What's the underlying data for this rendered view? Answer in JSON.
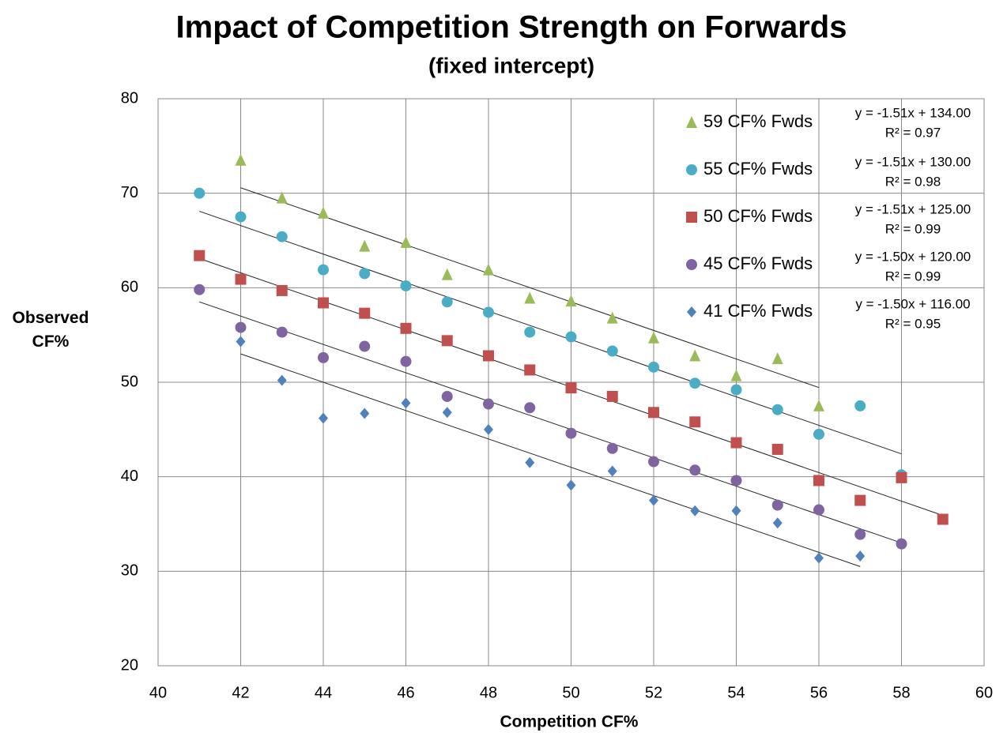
{
  "chart_data": {
    "type": "scatter",
    "title": "Impact of Competition Strength on Forwards",
    "subtitle": "(fixed intercept)",
    "x_label": "Competition CF%",
    "y_label": "Observed CF%",
    "xlim": [
      40,
      60
    ],
    "xticks": [
      40,
      42,
      44,
      46,
      48,
      50,
      52,
      54,
      56,
      58,
      60
    ],
    "ylim": [
      20,
      80
    ],
    "yticks": [
      20,
      30,
      40,
      50,
      60,
      70,
      80
    ],
    "grid": true,
    "series": [
      {
        "name": "59 CF% Fwds",
        "color": "#9bbb59",
        "marker": "triangle",
        "x": [
          42,
          43,
          44,
          45,
          46,
          47,
          48,
          49,
          50,
          51,
          52,
          53,
          54,
          55,
          56
        ],
        "values": [
          73.5,
          69.5,
          67.9,
          64.4,
          64.8,
          61.4,
          61.9,
          58.9,
          58.6,
          56.8,
          54.7,
          52.8,
          50.7,
          52.5,
          47.5
        ],
        "trendline": {
          "slope": -1.51,
          "intercept": 134.0,
          "label": "y = -1.51x + 134.00",
          "r2_label": "R² = 0.97"
        }
      },
      {
        "name": "55 CF% Fwds",
        "color": "#4bacc6",
        "marker": "circle",
        "x": [
          41,
          42,
          43,
          44,
          45,
          46,
          47,
          48,
          49,
          50,
          51,
          52,
          53,
          54,
          55,
          56,
          57,
          58
        ],
        "values": [
          70.0,
          67.5,
          65.4,
          61.9,
          61.5,
          60.2,
          58.5,
          57.4,
          55.3,
          54.8,
          53.3,
          51.6,
          49.9,
          49.2,
          47.1,
          44.5,
          47.5,
          40.2
        ],
        "trendline": {
          "slope": -1.51,
          "intercept": 130.0,
          "label": "y = -1.51x + 130.00",
          "r2_label": "R² = 0.98"
        }
      },
      {
        "name": "50 CF% Fwds",
        "color": "#c0504d",
        "marker": "square",
        "x": [
          41,
          42,
          43,
          44,
          45,
          46,
          47,
          48,
          49,
          50,
          51,
          52,
          53,
          54,
          55,
          56,
          57,
          58,
          59
        ],
        "values": [
          63.4,
          60.9,
          59.7,
          58.4,
          57.3,
          55.7,
          54.4,
          52.8,
          51.3,
          49.4,
          48.5,
          46.8,
          45.8,
          43.6,
          42.9,
          39.6,
          37.5,
          39.9,
          35.5
        ],
        "trendline": {
          "slope": -1.51,
          "intercept": 125.0,
          "label": "y = -1.51x + 125.00",
          "r2_label": "R² = 0.99"
        }
      },
      {
        "name": "45 CF% Fwds",
        "color": "#8064a2",
        "marker": "circle",
        "x": [
          41,
          42,
          43,
          44,
          45,
          46,
          47,
          48,
          49,
          50,
          51,
          52,
          53,
          54,
          55,
          56,
          57,
          58
        ],
        "values": [
          59.8,
          55.8,
          55.3,
          52.6,
          53.8,
          52.2,
          48.5,
          47.7,
          47.3,
          44.6,
          43.0,
          41.6,
          40.7,
          39.6,
          37.0,
          36.5,
          33.9,
          32.9
        ],
        "trendline": {
          "slope": -1.5,
          "intercept": 120.0,
          "label": "y = -1.50x + 120.00",
          "r2_label": "R² = 0.99"
        }
      },
      {
        "name": "41 CF% Fwds",
        "color": "#4f81bd",
        "marker": "diamond",
        "x": [
          42,
          43,
          44,
          45,
          46,
          47,
          48,
          49,
          50,
          51,
          52,
          53,
          54,
          55,
          56,
          57
        ],
        "values": [
          54.3,
          50.2,
          46.2,
          46.7,
          47.8,
          46.8,
          45.0,
          41.5,
          39.1,
          40.6,
          37.5,
          36.4,
          36.4,
          35.1,
          31.4,
          31.6
        ],
        "trendline": {
          "slope": -1.5,
          "intercept": 116.0,
          "label": "y = -1.50x + 116.00",
          "r2_label": "R² = 0.95"
        }
      }
    ]
  }
}
